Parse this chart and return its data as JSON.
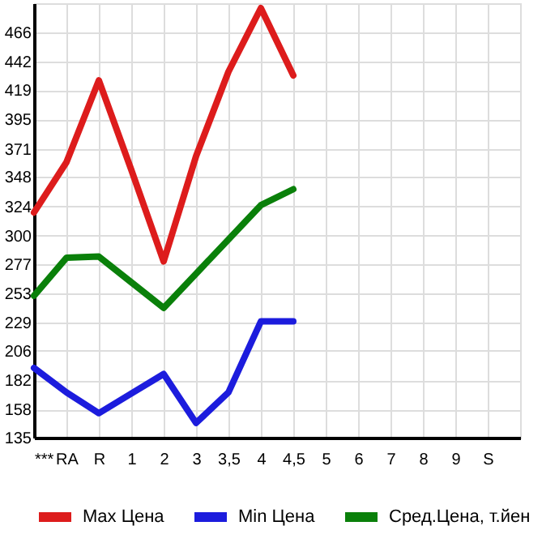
{
  "chart_data": {
    "type": "line",
    "categories": [
      "***",
      "RA",
      "R",
      "1",
      "2",
      "3",
      "3,5",
      "4",
      "4,5",
      "5",
      "6",
      "7",
      "8",
      "9",
      "S"
    ],
    "series": [
      {
        "name": "Max Цена",
        "color": "#dd1c1c",
        "values": [
          319,
          360,
          427,
          354,
          279,
          365,
          434,
          486,
          431,
          null,
          null,
          null,
          null,
          null,
          null
        ]
      },
      {
        "name": "Min Цена",
        "color": "#1c1cdd",
        "values": [
          192,
          172,
          155,
          171,
          187,
          147,
          172,
          230,
          230,
          null,
          null,
          null,
          null,
          null,
          null
        ]
      },
      {
        "name": "Сред.Цена, т.йен",
        "color": "#0a800a",
        "values": [
          251,
          282,
          283,
          262,
          241,
          269,
          297,
          325,
          338,
          null,
          null,
          null,
          null,
          null,
          null
        ]
      }
    ],
    "ylim": [
      135,
      490
    ],
    "yticks": [
      135,
      158,
      182,
      206,
      229,
      253,
      277,
      300,
      324,
      348,
      371,
      395,
      419,
      442,
      466
    ],
    "grid": true,
    "legend": "bottom",
    "marker": "none",
    "line_style": "solid"
  }
}
